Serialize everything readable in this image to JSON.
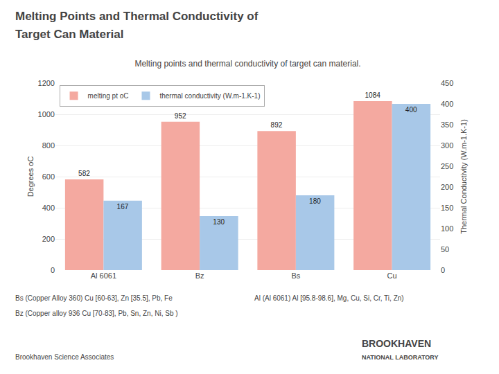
{
  "chart_data": {
    "type": "bar",
    "title": "Melting points and thermal conductivity of target can material.",
    "categories": [
      "Al 6061",
      "Bz",
      "Bs",
      "Cu"
    ],
    "series": [
      {
        "name": "melting pt oC",
        "color": "#F4A9A0",
        "values": [
          582,
          952,
          892,
          1084
        ]
      },
      {
        "name": "thermal conductivity (W.m-1.K-1)",
        "color": "#A8C8E8",
        "values": [
          167,
          130,
          180,
          400
        ],
        "axis": "y2"
      }
    ],
    "ylabel": "Degrees oC",
    "y2label": "Thermal Conductivity (W.m-1.K-1)",
    "ylim": [
      0,
      1200
    ],
    "yticks": [
      0,
      200,
      400,
      600,
      800,
      1000,
      1200
    ],
    "y2lim": [
      0,
      450
    ],
    "y2ticks": [
      0,
      50,
      100,
      150,
      200,
      250,
      300,
      350,
      400,
      450
    ],
    "grid": true,
    "legend": "upper left",
    "data_labels": true,
    "annotations": [
      "Melting Points and Thermal Conductivity of",
      "Target Can Material",
      "Bs (Copper Alloy 360) Cu [60-63], Zn [35.5], Pb, Fe",
      "Al (Al 6061) Al [95.8-98.6], Mg, Cu, Si, Cr, Ti, Zn)",
      "Bz (Copper alloy 936 Cu [70-83], Pb, Sn, Zn, Ni, Sb )",
      "Brookhaven Science Associates",
      "BROOKHAVEN",
      "NATIONAL LABORATORY"
    ]
  }
}
